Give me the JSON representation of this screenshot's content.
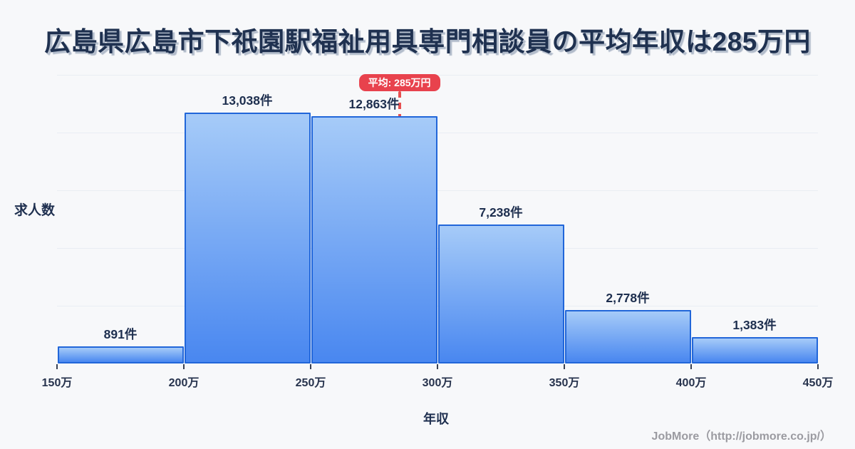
{
  "title": "広島県広島市下祇園駅福祉用具専門相談員の平均年収は285万円",
  "badge": {
    "label": "平均: 285万円"
  },
  "axes": {
    "y_label": "求人数",
    "x_label": "年収"
  },
  "footer": {
    "credit": "JobMore（http://jobmore.co.jp/）"
  },
  "colors": {
    "background": "#f7f8fa",
    "title_text": "#1f3150",
    "bar_fill_top": "#a6cbf8",
    "bar_fill_bottom": "#4987f0",
    "bar_border": "#2166d9",
    "grid_line": "#e9edf3",
    "badge_bg": "#e8424d",
    "badge_text": "#ffffff",
    "average_line": "#e65050",
    "axis_text": "#27334d",
    "footer_text": "#9b9ba1"
  },
  "chart_data": {
    "type": "bar",
    "title": "広島県広島市下祇園駅福祉用具専門相談員の平均年収は285万円",
    "categories": [
      "150万-200万",
      "200万-250万",
      "250万-300万",
      "300万-350万",
      "350万-400万",
      "400万-450万"
    ],
    "values": [
      891,
      13038,
      12863,
      7238,
      2778,
      1383
    ],
    "bar_labels": [
      "891件",
      "13,038件",
      "12,863件",
      "7,238件",
      "2,778件",
      "1,383件"
    ],
    "x_tick_labels": [
      "150万",
      "200万",
      "250万",
      "300万",
      "350万",
      "400万",
      "450万"
    ],
    "x_tick_values": [
      150,
      200,
      250,
      300,
      350,
      400,
      450
    ],
    "xlabel": "年収",
    "ylabel": "求人数",
    "ylim": [
      0,
      15000
    ],
    "grid": true,
    "gridline_interval": 3000,
    "legend": false,
    "average_line": {
      "value": 285,
      "unit": "万円",
      "label": "平均: 285万円",
      "style": "dashed"
    }
  }
}
